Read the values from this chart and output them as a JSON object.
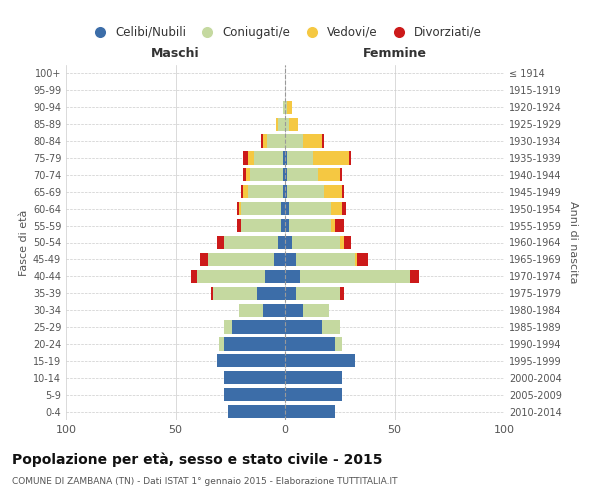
{
  "age_groups": [
    "0-4",
    "5-9",
    "10-14",
    "15-19",
    "20-24",
    "25-29",
    "30-34",
    "35-39",
    "40-44",
    "45-49",
    "50-54",
    "55-59",
    "60-64",
    "65-69",
    "70-74",
    "75-79",
    "80-84",
    "85-89",
    "90-94",
    "95-99",
    "100+"
  ],
  "birth_years": [
    "2010-2014",
    "2005-2009",
    "2000-2004",
    "1995-1999",
    "1990-1994",
    "1985-1989",
    "1980-1984",
    "1975-1979",
    "1970-1974",
    "1965-1969",
    "1960-1964",
    "1955-1959",
    "1950-1954",
    "1945-1949",
    "1940-1944",
    "1935-1939",
    "1930-1934",
    "1925-1929",
    "1920-1924",
    "1915-1919",
    "≤ 1914"
  ],
  "maschi": {
    "celibi": [
      26,
      28,
      28,
      31,
      28,
      24,
      10,
      13,
      9,
      5,
      3,
      2,
      2,
      1,
      1,
      1,
      0,
      0,
      0,
      0,
      0
    ],
    "coniugati": [
      0,
      0,
      0,
      0,
      2,
      4,
      11,
      20,
      31,
      30,
      25,
      18,
      18,
      16,
      15,
      13,
      8,
      3,
      1,
      0,
      0
    ],
    "vedovi": [
      0,
      0,
      0,
      0,
      0,
      0,
      0,
      0,
      0,
      0,
      0,
      0,
      1,
      2,
      2,
      3,
      2,
      1,
      0,
      0,
      0
    ],
    "divorziati": [
      0,
      0,
      0,
      0,
      0,
      0,
      0,
      1,
      3,
      4,
      3,
      2,
      1,
      1,
      1,
      2,
      1,
      0,
      0,
      0,
      0
    ]
  },
  "femmine": {
    "nubili": [
      23,
      26,
      26,
      32,
      23,
      17,
      8,
      5,
      7,
      5,
      3,
      2,
      2,
      1,
      1,
      1,
      0,
      0,
      0,
      0,
      0
    ],
    "coniugate": [
      0,
      0,
      0,
      0,
      3,
      8,
      12,
      20,
      50,
      27,
      22,
      19,
      19,
      17,
      14,
      12,
      8,
      2,
      1,
      0,
      0
    ],
    "vedove": [
      0,
      0,
      0,
      0,
      0,
      0,
      0,
      0,
      0,
      1,
      2,
      2,
      5,
      8,
      10,
      16,
      9,
      4,
      2,
      0,
      0
    ],
    "divorziate": [
      0,
      0,
      0,
      0,
      0,
      0,
      0,
      2,
      4,
      5,
      3,
      4,
      2,
      1,
      1,
      1,
      1,
      0,
      0,
      0,
      0
    ]
  },
  "colors": {
    "celibi_nubili": "#3c6da8",
    "coniugati": "#c5d9a0",
    "vedovi": "#f5c842",
    "divorziati": "#cc1a1a"
  },
  "xlim": 100,
  "title": "Popolazione per età, sesso e stato civile - 2015",
  "subtitle": "COMUNE DI ZAMBANA (TN) - Dati ISTAT 1° gennaio 2015 - Elaborazione TUTTITALIA.IT",
  "ylabel_left": "Fasce di età",
  "ylabel_right": "Anni di nascita",
  "xlabel_maschi": "Maschi",
  "xlabel_femmine": "Femmine",
  "legend_labels": [
    "Celibi/Nubili",
    "Coniugati/e",
    "Vedovi/e",
    "Divorziati/e"
  ],
  "background_color": "#ffffff"
}
